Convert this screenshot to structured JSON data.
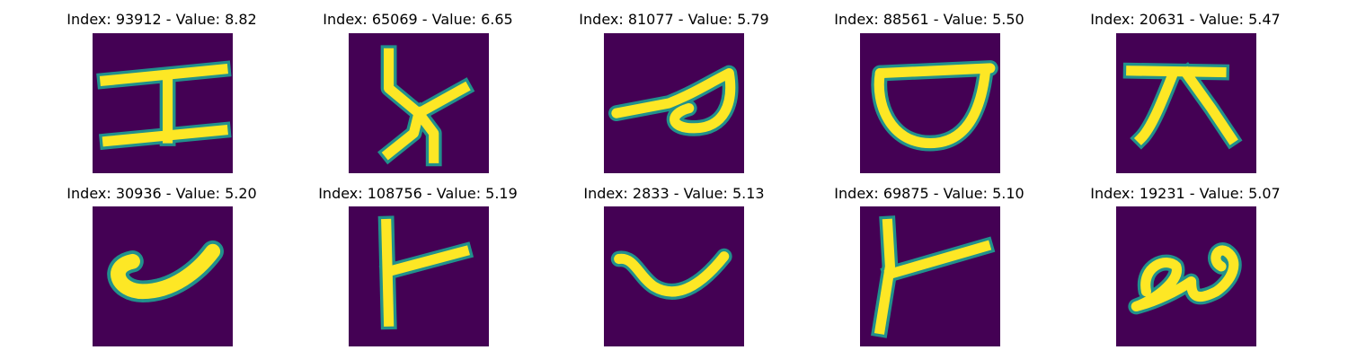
{
  "palette": {
    "background": "#440154",
    "stroke": "#fde725",
    "edge": "#21918c",
    "edge_light": "#5ec962"
  },
  "panels": [
    {
      "title": "Index: 93912 - Value: 8.82",
      "glyph": "h-shaped-glyph"
    },
    {
      "title": "Index: 65069 - Value: 6.65",
      "glyph": "y-shaped-glyph"
    },
    {
      "title": "Index: 81077 - Value: 5.79",
      "glyph": "looped-glyph"
    },
    {
      "title": "Index: 88561 - Value: 5.50",
      "glyph": "bowl-glyph"
    },
    {
      "title": "Index: 20631 - Value: 5.47",
      "glyph": "hat-glyph"
    },
    {
      "title": "Index: 30936 - Value: 5.20",
      "glyph": "checkmark-glyph"
    },
    {
      "title": "Index: 108756 - Value: 5.19",
      "glyph": "branch-glyph"
    },
    {
      "title": "Index: 2833 - Value: 5.13",
      "glyph": "cup-glyph"
    },
    {
      "title": "Index: 69875 - Value: 5.10",
      "glyph": "branch-glyph"
    },
    {
      "title": "Index: 19231 - Value: 5.07",
      "glyph": "swirl-glyph"
    }
  ]
}
